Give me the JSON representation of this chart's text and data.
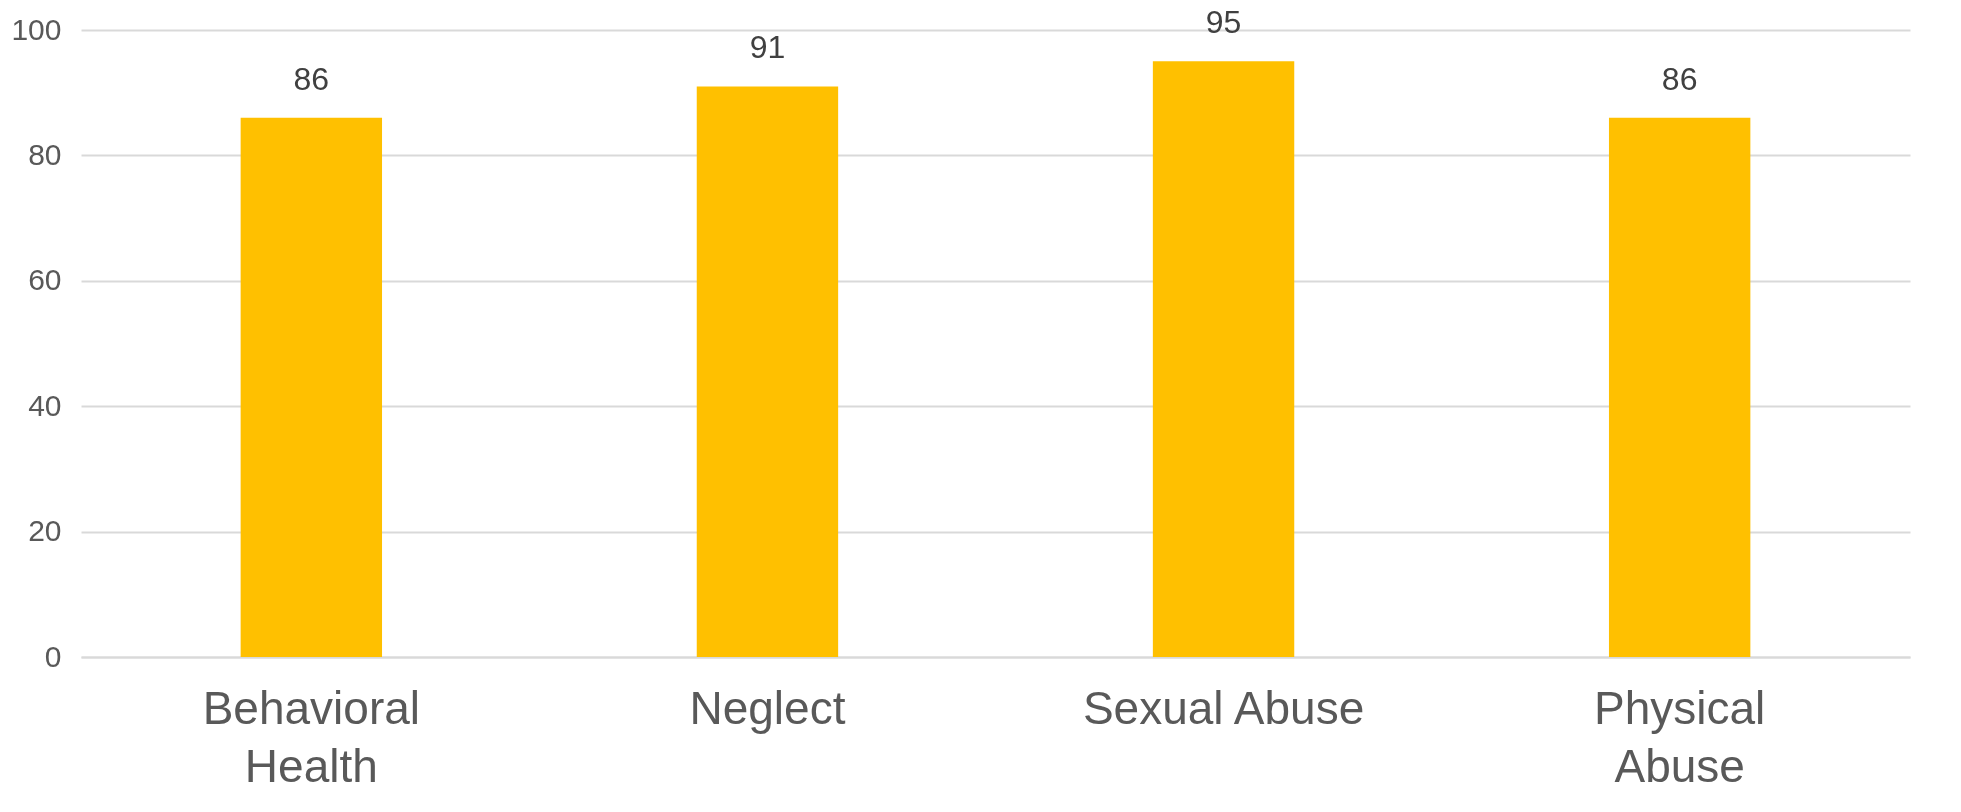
{
  "chart_data": {
    "type": "bar",
    "categories": [
      "Behavioral Health",
      "Neglect",
      "Sexual Abuse",
      "Physical Abuse"
    ],
    "values": [
      86,
      91,
      95,
      86
    ],
    "color": "#ffc000",
    "ylim": [
      0,
      100
    ],
    "yticks": [
      0,
      20,
      40,
      60,
      80,
      100
    ],
    "grid": "y",
    "data_labels": true
  }
}
